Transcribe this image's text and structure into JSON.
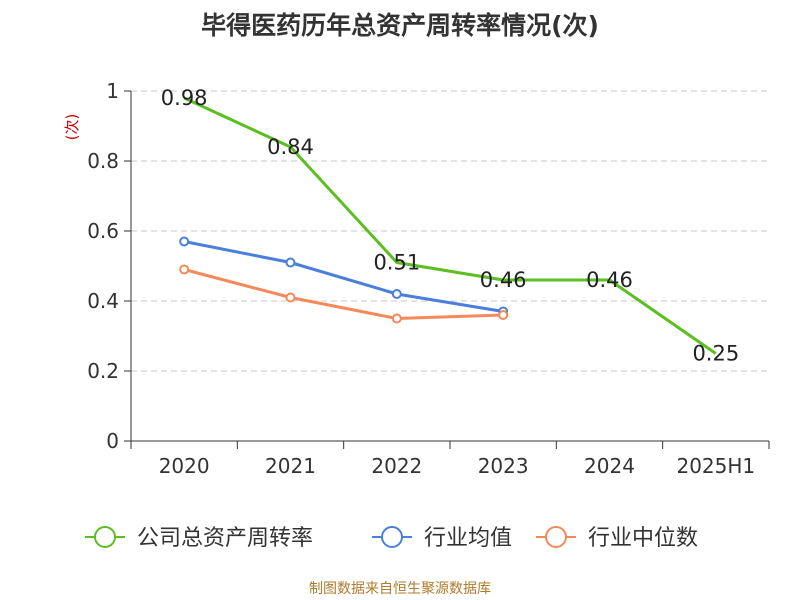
{
  "chart_data": {
    "type": "line",
    "title": "毕得医药历年总资产周转率情况(次)",
    "ylabel": "(次)",
    "categories": [
      "2020",
      "2021",
      "2022",
      "2023",
      "2024",
      "2025H1"
    ],
    "ylim": [
      0,
      1
    ],
    "yticks": [
      "0",
      "0.2",
      "0.4",
      "0.6",
      "0.8",
      "1"
    ],
    "ytick_values": [
      0,
      0.2,
      0.4,
      0.6,
      0.8,
      1.0
    ],
    "grid": true,
    "legend_position": "bottom",
    "series": [
      {
        "name": "公司总资产周转率",
        "color": "#5bbf21",
        "values": [
          0.98,
          0.84,
          0.51,
          0.46,
          0.46,
          0.25
        ],
        "labels": [
          "0.98",
          "0.84",
          "0.51",
          "0.46",
          "0.46",
          "0.25"
        ],
        "show_markers": false,
        "show_labels": true
      },
      {
        "name": "行业均值",
        "color": "#4a7fdb",
        "values": [
          0.57,
          0.51,
          0.42,
          0.37,
          null,
          null
        ],
        "show_markers": true,
        "show_labels": false
      },
      {
        "name": "行业中位数",
        "color": "#f5895a",
        "values": [
          0.49,
          0.41,
          0.35,
          0.36,
          null,
          null
        ],
        "show_markers": true,
        "show_labels": false
      }
    ]
  },
  "footer": {
    "source": "制图数据来自恒生聚源数据库"
  }
}
